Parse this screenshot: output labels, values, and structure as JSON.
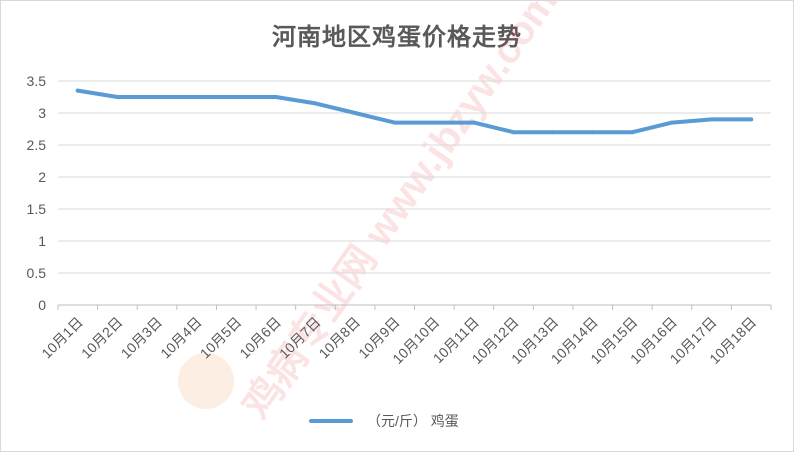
{
  "chart_data": {
    "type": "line",
    "title": "河南地区鸡蛋价格走势",
    "categories": [
      "10月1日",
      "10月2日",
      "10月3日",
      "10月4日",
      "10月5日",
      "10月6日",
      "10月7日",
      "10月8日",
      "10月9日",
      "10月10日",
      "10月11日",
      "10月12日",
      "10月13日",
      "10月14日",
      "10月15日",
      "10月16日",
      "10月17日",
      "10月18日"
    ],
    "series": [
      {
        "name": "（元/斤） 鸡蛋",
        "color": "#5b9bd5",
        "values": [
          3.35,
          3.25,
          3.25,
          3.25,
          3.25,
          3.25,
          3.15,
          3.0,
          2.85,
          2.85,
          2.85,
          2.7,
          2.7,
          2.7,
          2.7,
          2.85,
          2.9,
          2.9
        ]
      }
    ],
    "ylim": [
      0,
      3.5
    ],
    "yticks": [
      "0",
      "0.5",
      "1",
      "1.5",
      "2",
      "2.5",
      "3",
      "3.5"
    ],
    "grid": true,
    "legend_position": "bottom",
    "watermark": "鸡病专业网 www.jbzyw.com"
  }
}
